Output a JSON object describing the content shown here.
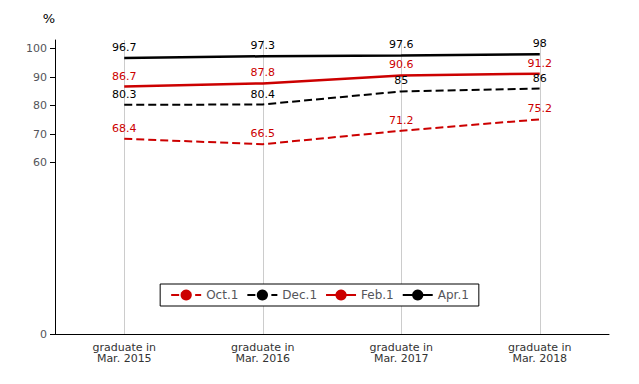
{
  "chart_data": {
    "type": "line",
    "categories": [
      "graduate in\nMar. 2015",
      "graduate in\nMar. 2016",
      "graduate in\nMar. 2017",
      "graduate in\nMar. 2018"
    ],
    "series": [
      {
        "name": "Oct.1",
        "color": "#cc0000",
        "line_style": "dashed",
        "values": [
          68.4,
          66.5,
          71.2,
          75.2
        ]
      },
      {
        "name": "Dec.1",
        "color": "#000000",
        "line_style": "dashed",
        "values": [
          80.3,
          80.4,
          85.0,
          86.0
        ]
      },
      {
        "name": "Feb.1",
        "color": "#cc0000",
        "line_style": "solid",
        "values": [
          86.7,
          87.8,
          90.6,
          91.2
        ]
      },
      {
        "name": "Apr.1",
        "color": "#000000",
        "line_style": "solid",
        "values": [
          96.7,
          97.3,
          97.6,
          98.0
        ]
      }
    ],
    "ylabel": "%",
    "ylim": [
      0,
      103
    ],
    "yticks": [
      0,
      60,
      70,
      80,
      90,
      100
    ],
    "grid": true,
    "legend": "lower center",
    "data_labels": true
  }
}
